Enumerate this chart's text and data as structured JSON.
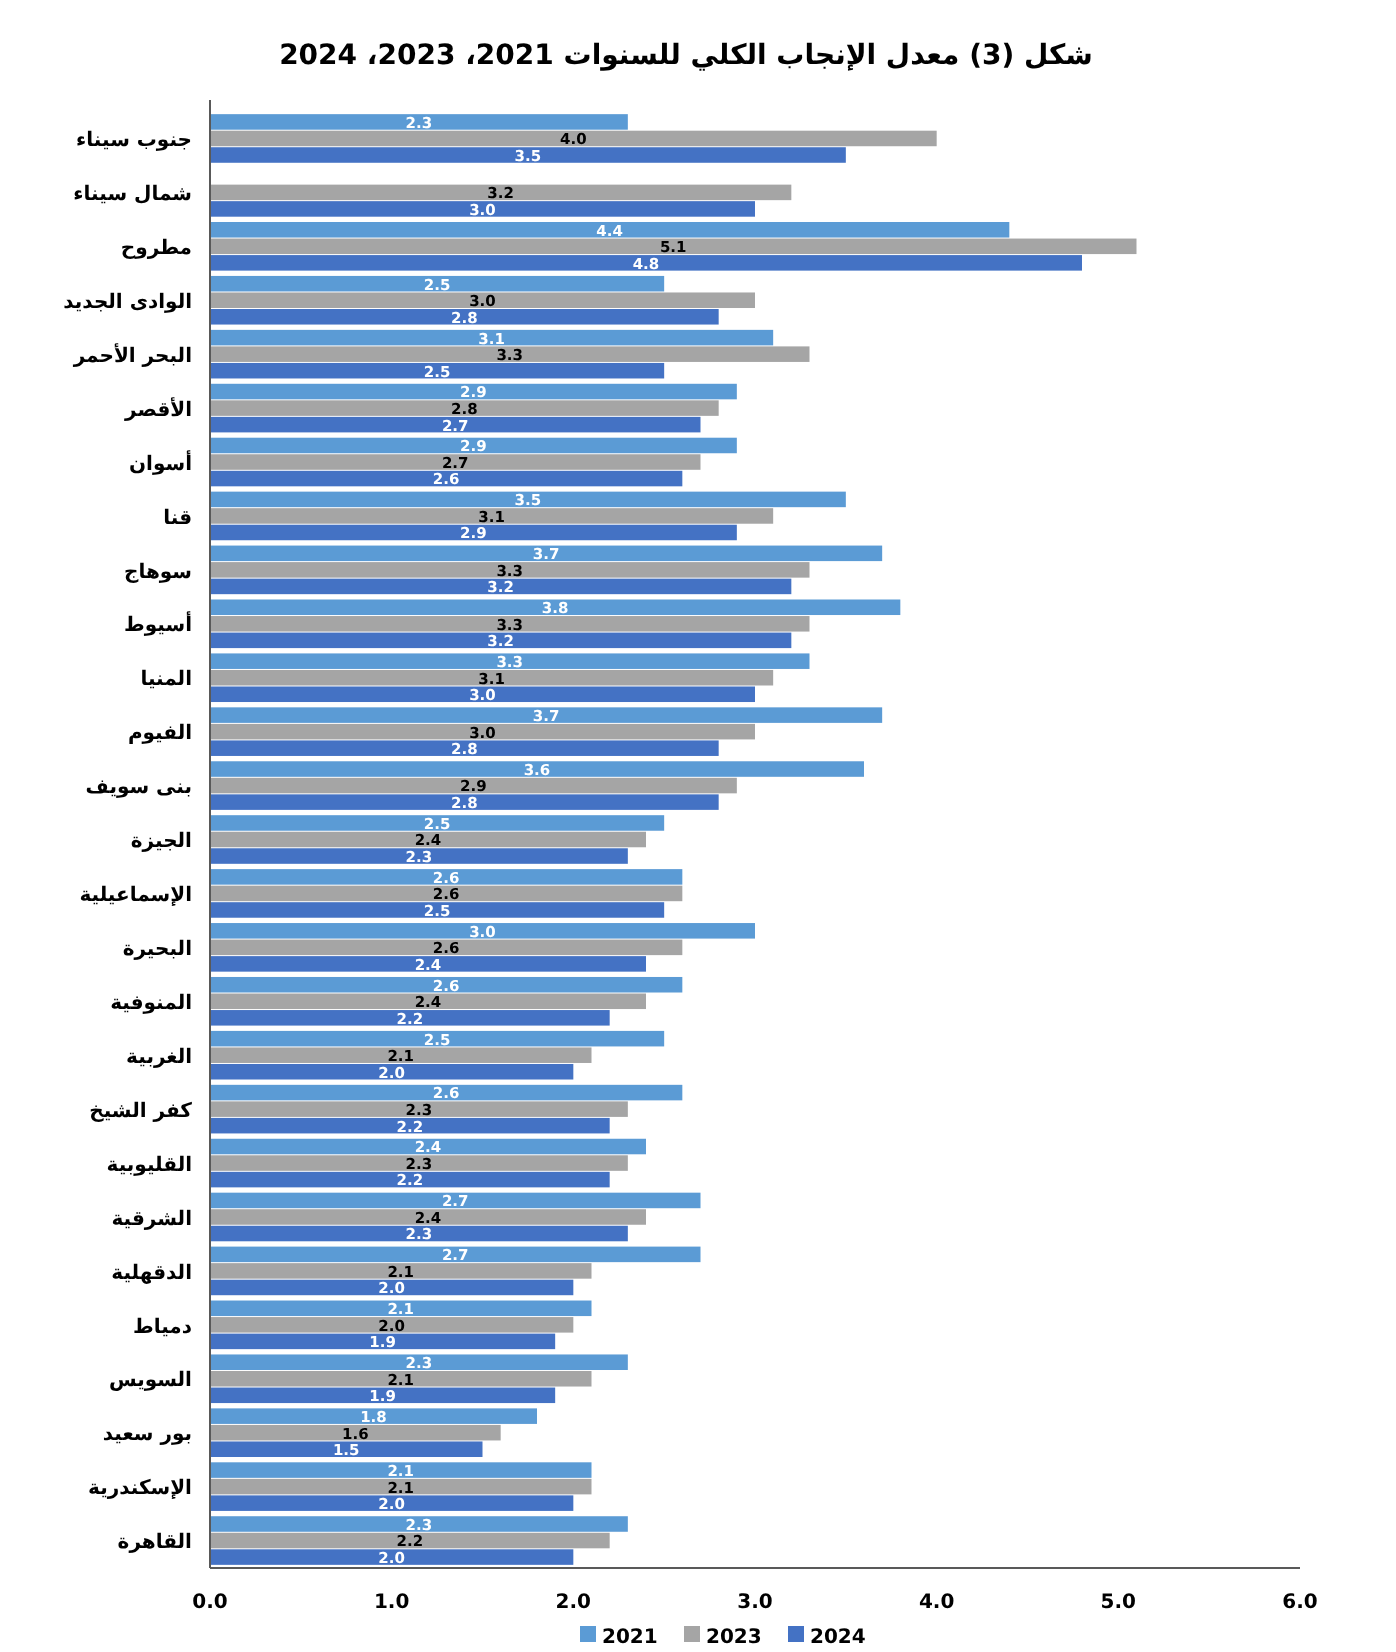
{
  "chart_data": {
    "type": "bar",
    "orientation": "horizontal",
    "title": "شكل (3) معدل الإنجاب الكلي للسنوات 2021، 2023، 2024",
    "categories": [
      "جنوب سيناء",
      "شمال سيناء",
      "مطروح",
      "الوادى الجديد",
      "البحر الأحمر",
      "الأقصر",
      "أسوان",
      "قنا",
      "سوهاج",
      "أسيوط",
      "المنيا",
      "الفيوم",
      "بنى سويف",
      "الجيزة",
      "الإسماعيلية",
      "البحيرة",
      "المنوفية",
      "الغربية",
      "كفر الشيخ",
      "القليوبية",
      "الشرقية",
      "الدقهلية",
      "دمياط",
      "السويس",
      "بور سعيد",
      "الإسكندرية",
      "القاهرة"
    ],
    "series": [
      {
        "name": "2021",
        "color": "#5b9bd5",
        "values": [
          2.3,
          null,
          4.4,
          2.5,
          3.1,
          2.9,
          2.9,
          3.5,
          3.7,
          3.8,
          3.3,
          3.7,
          3.6,
          2.5,
          2.6,
          3.0,
          2.6,
          2.5,
          2.6,
          2.4,
          2.7,
          2.7,
          2.1,
          2.3,
          1.8,
          2.1,
          2.3
        ],
        "value_labels": [
          "2.3",
          null,
          "4.4",
          "2.5",
          "3.1",
          "2.9",
          "2.9",
          "3.5",
          "3.7",
          "3.8",
          "3.3",
          "3.7",
          "3.6",
          "2.5",
          "2.6",
          "3.0",
          "2.6",
          "2.5",
          "2.6",
          "2.4",
          "2.7",
          "2.7",
          "2.1",
          "2.3",
          "1.8",
          "2.1",
          "2.3"
        ]
      },
      {
        "name": "2023",
        "color": "#a5a5a5",
        "values": [
          4.0,
          3.2,
          5.1,
          3.0,
          3.3,
          2.8,
          2.7,
          3.1,
          3.3,
          3.3,
          3.1,
          3.0,
          2.9,
          2.4,
          2.6,
          2.6,
          2.4,
          2.1,
          2.3,
          2.3,
          2.4,
          2.1,
          2.0,
          2.1,
          1.6,
          2.1,
          2.2
        ],
        "value_labels": [
          "4.0",
          "3.2",
          "5.1",
          "3.0",
          "3.3",
          "2.8",
          "2.7",
          "3.1",
          "3.3",
          "3.3",
          "3.1",
          "3.0",
          "2.9",
          "2.4",
          "2.6",
          "2.6",
          "2.4",
          "2.1",
          "2.3",
          "2.3",
          "2.4",
          "2.1",
          "2.0",
          "2.1",
          "1.6",
          "2.1",
          "2.2"
        ]
      },
      {
        "name": "2024",
        "color": "#4472c4",
        "values": [
          3.5,
          3.0,
          4.8,
          2.8,
          2.5,
          2.7,
          2.6,
          2.9,
          3.2,
          3.2,
          3.0,
          2.8,
          2.8,
          2.3,
          2.5,
          2.4,
          2.2,
          2.0,
          2.2,
          2.2,
          2.3,
          2.0,
          1.9,
          1.9,
          1.5,
          2.0,
          2.0
        ],
        "value_labels": [
          "3.5",
          "3.0",
          "4.8",
          "2.8",
          "2.5",
          "2.7",
          "2.6",
          "2.9",
          "3.2",
          "3.2",
          "3.0",
          "2.8",
          "2.8",
          "2.3",
          "2.5",
          "2.4",
          "2.2",
          "2.0",
          "2.2",
          "2.2",
          "2.3",
          "2.0",
          "1.9",
          "1.9",
          "1.5",
          "2.0",
          "2.0"
        ]
      }
    ],
    "xlim": [
      0,
      6
    ],
    "xticks": [
      {
        "value": 0,
        "label": "0.0"
      },
      {
        "value": 1,
        "label": "1.0"
      },
      {
        "value": 2,
        "label": "2.0"
      },
      {
        "value": 3,
        "label": "3.0"
      },
      {
        "value": 4,
        "label": "4.0"
      },
      {
        "value": 5,
        "label": "5.0"
      },
      {
        "value": 6,
        "label": "6.0"
      }
    ],
    "legend": "bottom",
    "grid": false
  }
}
